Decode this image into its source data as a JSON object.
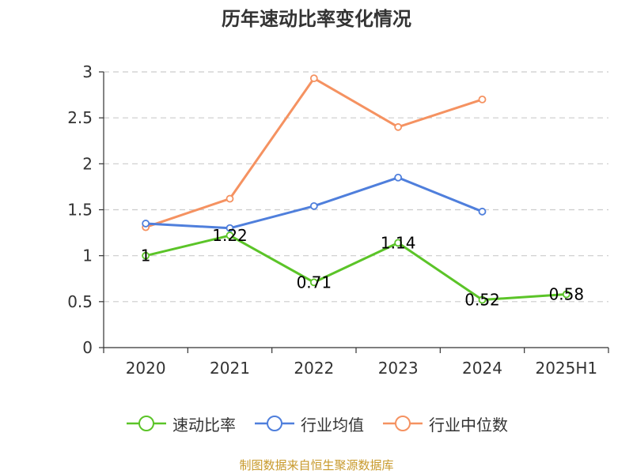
{
  "title": "历年速动比率变化情况",
  "source_note": "制图数据来自恒生聚源数据库",
  "chart_data": {
    "type": "line",
    "title": "历年速动比率变化情况",
    "categories": [
      "2020",
      "2021",
      "2022",
      "2023",
      "2024",
      "2025H1"
    ],
    "ylim": [
      0,
      3
    ],
    "yticks": [
      0,
      0.5,
      1,
      1.5,
      2,
      2.5,
      3
    ],
    "ytick_labels": [
      "0",
      "0.5",
      "1",
      "1.5",
      "2",
      "2.5",
      "3"
    ],
    "grid": true,
    "legend_position": "bottom",
    "series": [
      {
        "name": "速动比率",
        "color": "#5bc428",
        "values": [
          1,
          1.22,
          0.71,
          1.14,
          0.52,
          0.58
        ],
        "labels": [
          "1",
          "1.22",
          "0.71",
          "1.14",
          "0.52",
          "0.58"
        ],
        "show_labels": true
      },
      {
        "name": "行业均值",
        "color": "#4f7fdc",
        "values": [
          1.35,
          1.3,
          1.54,
          1.85,
          1.48,
          null
        ],
        "show_labels": false
      },
      {
        "name": "行业中位数",
        "color": "#f59261",
        "values": [
          1.31,
          1.62,
          2.93,
          2.4,
          2.7,
          null
        ],
        "show_labels": false
      }
    ]
  }
}
